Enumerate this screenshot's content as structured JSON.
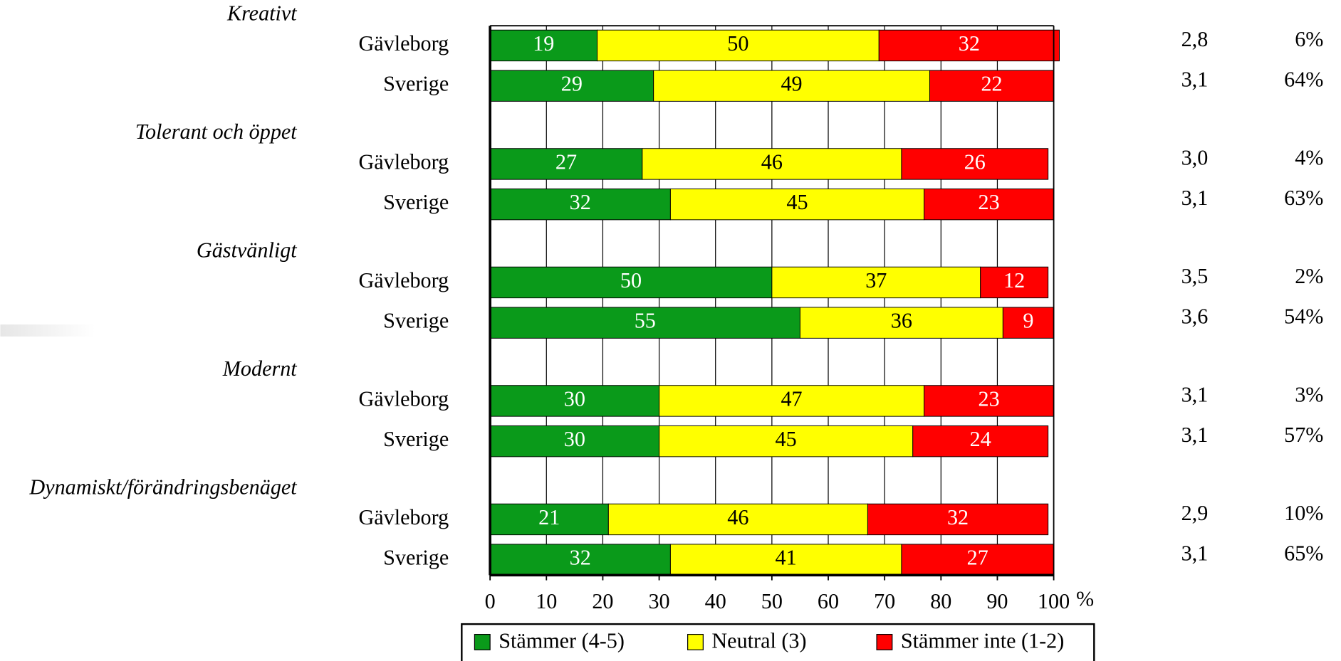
{
  "chart_data": {
    "type": "stacked_barh",
    "group_labels": [
      "Kreativt",
      "Tolerant och öppet",
      "Gästvänligt",
      "Modernt",
      "Dynamiskt/förändringsbenäget"
    ],
    "categories": [
      "Gävleborg",
      "Sverige",
      "Gävleborg",
      "Sverige",
      "Gävleborg",
      "Sverige",
      "Gävleborg",
      "Sverige",
      "Gävleborg",
      "Sverige"
    ],
    "series": [
      {
        "name": "Stämmer (4-5)",
        "color": "#0a9a1a",
        "label_color": "#ffffff",
        "values": [
          19,
          29,
          27,
          32,
          50,
          55,
          30,
          30,
          21,
          32
        ]
      },
      {
        "name": "Neutral (3)",
        "color": "#ffff00",
        "label_color": "#000000",
        "values": [
          50,
          49,
          46,
          45,
          37,
          36,
          47,
          45,
          46,
          41
        ]
      },
      {
        "name": "Stämmer inte (1-2)",
        "color": "#ff0000",
        "label_color": "#ffffff",
        "values": [
          32,
          22,
          26,
          23,
          12,
          9,
          23,
          24,
          32,
          27
        ]
      }
    ],
    "mean_column": [
      "2,8",
      "3,1",
      "3,0",
      "3,1",
      "3,5",
      "3,6",
      "3,1",
      "3,1",
      "2,9",
      "3,1"
    ],
    "share_column": [
      "6%",
      "64%",
      "4%",
      "63%",
      "2%",
      "54%",
      "3%",
      "57%",
      "10%",
      "65%"
    ],
    "xlim": [
      0,
      100
    ],
    "xticks": [
      0,
      10,
      20,
      30,
      40,
      50,
      60,
      70,
      80,
      90,
      100
    ],
    "x_unit": "%",
    "grid": true
  }
}
